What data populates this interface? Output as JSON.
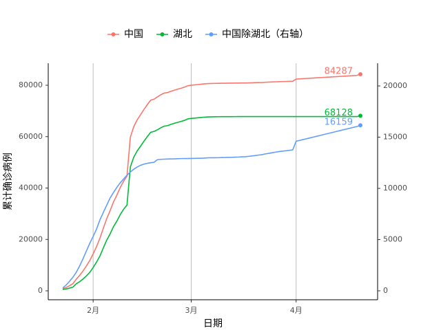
{
  "chart_data": {
    "type": "line",
    "x_label": "日期",
    "y_label": "累计确诊病例",
    "categories": [
      null,
      null,
      null,
      null,
      null,
      null,
      null,
      null,
      null,
      "2月",
      null,
      null,
      null,
      null,
      null,
      null,
      null,
      null,
      null,
      null,
      null,
      null,
      null,
      null,
      null,
      null,
      null,
      null,
      null,
      null,
      null,
      null,
      null,
      null,
      null,
      null,
      null,
      null,
      "3月",
      null,
      null,
      null,
      null,
      null,
      null,
      null,
      null,
      null,
      null,
      null,
      null,
      null,
      null,
      null,
      null,
      null,
      null,
      null,
      null,
      null,
      null,
      null,
      null,
      null,
      null,
      null,
      null,
      null,
      null,
      "4月",
      null,
      null,
      null,
      null,
      null,
      null,
      null,
      null,
      null,
      null,
      null,
      null,
      null,
      null,
      null,
      null,
      null,
      null,
      null
    ],
    "series": [
      {
        "name": "中国",
        "color": "#F8766D",
        "values": [
          830,
          1287,
          1975,
          2744,
          4515,
          5974,
          7711,
          9692,
          11791,
          14380,
          17205,
          20438,
          24324,
          28018,
          31161,
          34546,
          37198,
          40171,
          42638,
          44653,
          59804,
          63851,
          66492,
          68500,
          70548,
          72436,
          74185,
          74576,
          75465,
          76288,
          76936,
          77150,
          77658,
          78064,
          78497,
          78824,
          79251,
          79824,
          80026,
          80151,
          80270,
          80409,
          80552,
          80651,
          80695,
          80735,
          80754,
          80778,
          80793,
          80813,
          80824,
          80844,
          80860,
          80881,
          80894,
          80928,
          80967,
          81008,
          81054,
          81093,
          81171,
          81218,
          81285,
          81340,
          81394,
          81439,
          81470,
          81518,
          81554,
          82403,
          82483,
          82563,
          82643,
          82723,
          82803,
          82883,
          82963,
          83043,
          83123,
          83203,
          83283,
          83363,
          83443,
          83523,
          83603,
          83683,
          83763,
          83843,
          84287
        ]
      },
      {
        "name": "湖北",
        "color": "#00BA38",
        "values": [
          549,
          729,
          1052,
          1423,
          2714,
          3554,
          4586,
          5806,
          7153,
          9074,
          11177,
          13522,
          16678,
          19665,
          22112,
          24953,
          27100,
          29631,
          31728,
          33366,
          48206,
          51986,
          54406,
          56249,
          58182,
          59989,
          61682,
          62031,
          62662,
          63454,
          64084,
          64287,
          64786,
          65187,
          65596,
          65914,
          66337,
          66907,
          67103,
          67217,
          67332,
          67466,
          67592,
          67666,
          67707,
          67743,
          67760,
          67773,
          67781,
          67786,
          67790,
          67794,
          67798,
          67799,
          67800,
          67800,
          67800,
          67800,
          67800,
          67800,
          67800,
          67801,
          67801,
          67801,
          67801,
          67801,
          67801,
          67801,
          67801,
          67803,
          67803,
          67803,
          67803,
          67803,
          67803,
          67803,
          67803,
          67803,
          67803,
          67803,
          67803,
          67803,
          67803,
          67803,
          67803,
          67803,
          67803,
          67803,
          68128
        ]
      },
      {
        "name": "中国除湖北（右轴）",
        "color": "#619CFF",
        "axis": "y2",
        "values": [
          281,
          558,
          923,
          1321,
          1801,
          2420,
          3125,
          3886,
          4638,
          5306,
          6028,
          6916,
          7646,
          8353,
          9049,
          9593,
          10098,
          10540,
          10910,
          11287,
          11598,
          11865,
          12086,
          12251,
          12366,
          12447,
          12503,
          12545,
          12803,
          12834,
          12852,
          12863,
          12872,
          12877,
          12901,
          12910,
          12914,
          12917,
          12923,
          12934,
          12938,
          12943,
          12960,
          12985,
          12988,
          12992,
          12994,
          13005,
          13012,
          13027,
          13034,
          13050,
          13062,
          13082,
          13094,
          13128,
          13167,
          13208,
          13254,
          13293,
          13371,
          13417,
          13484,
          13539,
          13593,
          13638,
          13669,
          13717,
          13753,
          14600,
          14680,
          14760,
          14840,
          14920,
          15000,
          15080,
          15160,
          15240,
          15320,
          15400,
          15480,
          15560,
          15640,
          15720,
          15800,
          15880,
          15960,
          16040,
          16159
        ]
      }
    ],
    "ylim": [
      -3478,
      88562
    ],
    "yticks": [
      0,
      20000,
      40000,
      60000,
      80000
    ],
    "y2lim": [
      -873,
      22214
    ],
    "y2ticks": [
      0,
      5000,
      10000,
      15000,
      20000
    ],
    "grid": "x",
    "legend": "top"
  }
}
